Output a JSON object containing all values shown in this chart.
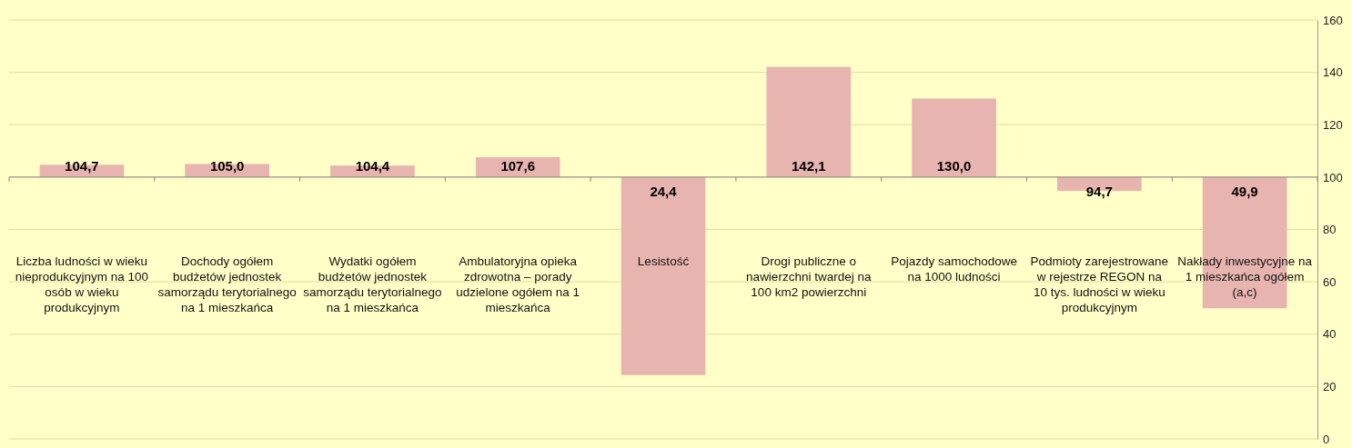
{
  "chart_data": {
    "type": "bar",
    "categories": [
      "Liczba ludności w wieku nieprodukcyjnym na 100 osób w wieku produkcyjnym",
      "Dochody ogółem budżetów jednostek samorządu terytorialnego na 1 mieszkańca",
      "Wydatki ogółem budżetów jednostek samorządu terytorialnego na 1 mieszkańca",
      "Ambulatoryjna opieka zdrowotna – porady udzielone ogółem na 1 mieszkańca",
      "Lesistość",
      "Drogi publiczne o nawierzchni twardej na 100 km2 powierzchni",
      "Pojazdy samochodowe na 1000 ludności",
      "Podmioty zarejestrowane w rejestrze REGON na 10 tys. ludności w wieku produkcyjnym",
      "Nakłady inwestycyjne na 1 mieszkańca ogółem (a,c)"
    ],
    "series": [
      {
        "color": "#e8b4b0",
        "base": [
          100,
          100,
          100,
          100,
          100,
          100,
          100,
          100,
          100
        ],
        "values": [
          4.7,
          5.0,
          4.4,
          7.6,
          -75.6,
          42.1,
          30.0,
          -5.3,
          -50.1
        ],
        "value_labels": [
          "104,7",
          "105,0",
          "104,4",
          "107,6",
          "24,4",
          "142,1",
          "130,0",
          "94,7",
          "49,9"
        ]
      }
    ],
    "ylim": [
      0,
      160
    ],
    "yticks": [
      0,
      20,
      40,
      60,
      80,
      100,
      120,
      140,
      160
    ],
    "grid": "y",
    "ref_lines": [
      {
        "axis": "y",
        "value": 100,
        "color": "#888888"
      }
    ]
  }
}
